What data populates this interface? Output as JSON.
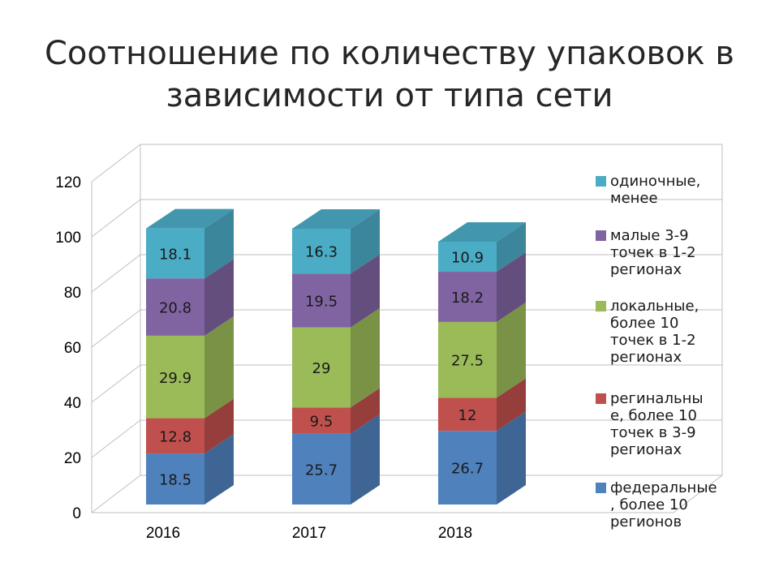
{
  "title_line1": "Соотношение по количеству упаковок в",
  "title_line2": "зависимости от типа сети",
  "chart_data": {
    "type": "bar",
    "stacked": true,
    "three_d": true,
    "categories": [
      "2016",
      "2017",
      "2018"
    ],
    "ylim": [
      0,
      120
    ],
    "yticks": [
      0,
      20,
      40,
      60,
      80,
      100,
      120
    ],
    "legend_position": "right",
    "grid": "horizontal",
    "series": [
      {
        "name": "федеральные, более 10 регионов",
        "legend_lines": [
          "федеральные",
          ", более 10",
          "регионов"
        ],
        "color": "#4F81BD",
        "values": [
          18.5,
          25.7,
          26.7
        ],
        "labels": [
          "18.5",
          "25.7",
          "26.7"
        ]
      },
      {
        "name": "региональные, более 10 точек в 3-9 регионах",
        "legend_lines": [
          "регинальны",
          "е, более 10",
          "точек в 3-9",
          "регионах"
        ],
        "color": "#C0504D",
        "values": [
          12.8,
          9.5,
          12
        ],
        "labels": [
          "12.8",
          "9.5",
          "12"
        ]
      },
      {
        "name": "локальные, более 10 точек в 1-2 регионах",
        "legend_lines": [
          "локальные,",
          "более 10",
          "точек в 1-2",
          "регионах"
        ],
        "color": "#9BBB59",
        "values": [
          29.9,
          29,
          27.5
        ],
        "labels": [
          "29.9",
          "29",
          "27.5"
        ]
      },
      {
        "name": "малые 3-9 точек в 1-2 регионах",
        "legend_lines": [
          "малые 3-9",
          "точек в 1-2",
          "регионах"
        ],
        "color": "#8064A2",
        "values": [
          20.8,
          19.5,
          18.2
        ],
        "labels": [
          "20.8",
          "19.5",
          "18.2"
        ]
      },
      {
        "name": "одиночные, менее",
        "legend_lines": [
          "одиночные,",
          "менее"
        ],
        "color": "#4BACC6",
        "values": [
          18.1,
          16.3,
          10.9
        ],
        "labels": [
          "18.1",
          "16.3",
          "10.9"
        ]
      }
    ]
  }
}
